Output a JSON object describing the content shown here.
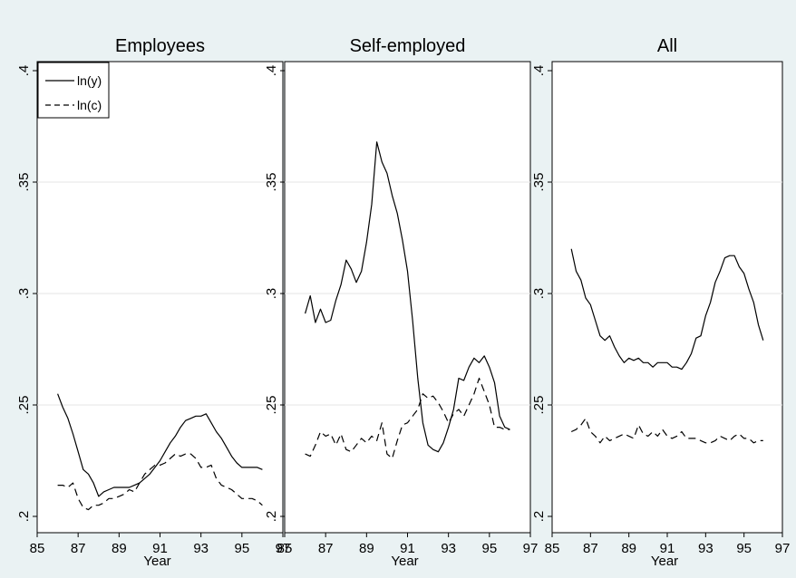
{
  "chart_data": [
    {
      "type": "line",
      "title": "Employees",
      "xlabel": "Year",
      "ylabel": "",
      "xlim": [
        85,
        97
      ],
      "ylim": [
        0.2,
        0.4
      ],
      "xticks": [
        "85",
        "87",
        "89",
        "91",
        "93",
        "95",
        "97"
      ],
      "yticks": [
        ".2",
        ".25",
        ".3",
        ".35",
        ".4"
      ],
      "grid": true,
      "legend": "top-left",
      "series": [
        {
          "name": "ln(y)",
          "style": "solid",
          "x": [
            86.0,
            86.25,
            86.5,
            86.75,
            87.0,
            87.25,
            87.5,
            87.75,
            88.0,
            88.25,
            88.5,
            88.75,
            89.0,
            89.25,
            89.5,
            89.75,
            90.0,
            90.25,
            90.5,
            90.75,
            91.0,
            91.25,
            91.5,
            91.75,
            92.0,
            92.25,
            92.5,
            92.75,
            93.0,
            93.25,
            93.5,
            93.75,
            94.0,
            94.25,
            94.5,
            94.75,
            95.0,
            95.25,
            95.5,
            95.75,
            96.0
          ],
          "y": [
            0.255,
            0.249,
            0.244,
            0.237,
            0.229,
            0.221,
            0.219,
            0.215,
            0.209,
            0.211,
            0.212,
            0.213,
            0.213,
            0.213,
            0.213,
            0.214,
            0.215,
            0.217,
            0.219,
            0.222,
            0.225,
            0.229,
            0.233,
            0.236,
            0.24,
            0.243,
            0.244,
            0.245,
            0.245,
            0.246,
            0.242,
            0.238,
            0.235,
            0.231,
            0.227,
            0.224,
            0.222,
            0.222,
            0.222,
            0.222,
            0.221
          ]
        },
        {
          "name": "ln(c)",
          "style": "dashed",
          "x": [
            86.0,
            86.25,
            86.5,
            86.75,
            87.0,
            87.25,
            87.5,
            87.75,
            88.0,
            88.25,
            88.5,
            88.75,
            89.0,
            89.25,
            89.5,
            89.75,
            90.0,
            90.25,
            90.5,
            90.75,
            91.0,
            91.25,
            91.5,
            91.75,
            92.0,
            92.25,
            92.5,
            92.75,
            93.0,
            93.25,
            93.5,
            93.75,
            94.0,
            94.25,
            94.5,
            94.75,
            95.0,
            95.25,
            95.5,
            95.75,
            96.0
          ],
          "y": [
            0.214,
            0.214,
            0.213,
            0.215,
            0.208,
            0.204,
            0.203,
            0.205,
            0.205,
            0.206,
            0.208,
            0.208,
            0.209,
            0.21,
            0.212,
            0.211,
            0.215,
            0.219,
            0.221,
            0.223,
            0.223,
            0.224,
            0.226,
            0.228,
            0.227,
            0.228,
            0.228,
            0.226,
            0.222,
            0.222,
            0.223,
            0.217,
            0.214,
            0.213,
            0.212,
            0.21,
            0.208,
            0.208,
            0.208,
            0.207,
            0.205
          ]
        }
      ]
    },
    {
      "type": "line",
      "title": "Self-employed",
      "xlabel": "Year",
      "ylabel": "",
      "xlim": [
        85,
        97
      ],
      "ylim": [
        0.2,
        0.4
      ],
      "xticks": [
        "85",
        "87",
        "89",
        "91",
        "93",
        "95",
        "97"
      ],
      "yticks": [
        ".2",
        ".25",
        ".3",
        ".35",
        ".4"
      ],
      "grid": true,
      "series": [
        {
          "name": "ln(y)",
          "style": "solid",
          "x": [
            86.0,
            86.25,
            86.5,
            86.75,
            87.0,
            87.25,
            87.5,
            87.75,
            88.0,
            88.25,
            88.5,
            88.75,
            89.0,
            89.25,
            89.5,
            89.75,
            90.0,
            90.25,
            90.5,
            90.75,
            91.0,
            91.25,
            91.5,
            91.75,
            92.0,
            92.25,
            92.5,
            92.75,
            93.0,
            93.25,
            93.5,
            93.75,
            94.0,
            94.25,
            94.5,
            94.75,
            95.0,
            95.25,
            95.5,
            95.75,
            96.0
          ],
          "y": [
            0.291,
            0.299,
            0.287,
            0.293,
            0.287,
            0.288,
            0.297,
            0.304,
            0.315,
            0.311,
            0.305,
            0.31,
            0.323,
            0.34,
            0.368,
            0.359,
            0.354,
            0.344,
            0.336,
            0.324,
            0.31,
            0.288,
            0.262,
            0.242,
            0.232,
            0.23,
            0.229,
            0.233,
            0.24,
            0.248,
            0.262,
            0.261,
            0.267,
            0.271,
            0.269,
            0.272,
            0.267,
            0.26,
            0.245,
            0.24,
            0.239
          ]
        },
        {
          "name": "ln(c)",
          "style": "dashed",
          "x": [
            86.0,
            86.25,
            86.5,
            86.75,
            87.0,
            87.25,
            87.5,
            87.75,
            88.0,
            88.25,
            88.5,
            88.75,
            89.0,
            89.25,
            89.5,
            89.75,
            90.0,
            90.25,
            90.5,
            90.75,
            91.0,
            91.25,
            91.5,
            91.75,
            92.0,
            92.25,
            92.5,
            92.75,
            93.0,
            93.25,
            93.5,
            93.75,
            94.0,
            94.25,
            94.5,
            94.75,
            95.0,
            95.25,
            95.5,
            95.75,
            96.0
          ],
          "y": [
            0.228,
            0.227,
            0.232,
            0.238,
            0.236,
            0.237,
            0.232,
            0.237,
            0.23,
            0.229,
            0.232,
            0.235,
            0.233,
            0.236,
            0.234,
            0.242,
            0.228,
            0.226,
            0.234,
            0.241,
            0.242,
            0.245,
            0.248,
            0.255,
            0.253,
            0.254,
            0.251,
            0.247,
            0.242,
            0.246,
            0.248,
            0.245,
            0.25,
            0.255,
            0.262,
            0.256,
            0.25,
            0.24,
            0.24,
            0.239,
            0.239
          ]
        }
      ]
    },
    {
      "type": "line",
      "title": "All",
      "xlabel": "Year",
      "ylabel": "",
      "xlim": [
        85,
        97
      ],
      "ylim": [
        0.2,
        0.4
      ],
      "xticks": [
        "85",
        "87",
        "89",
        "91",
        "93",
        "95",
        "97"
      ],
      "yticks": [
        ".2",
        ".25",
        ".3",
        ".35",
        ".4"
      ],
      "grid": true,
      "series": [
        {
          "name": "ln(y)",
          "style": "solid",
          "x": [
            86.0,
            86.25,
            86.5,
            86.75,
            87.0,
            87.25,
            87.5,
            87.75,
            88.0,
            88.25,
            88.5,
            88.75,
            89.0,
            89.25,
            89.5,
            89.75,
            90.0,
            90.25,
            90.5,
            90.75,
            91.0,
            91.25,
            91.5,
            91.75,
            92.0,
            92.25,
            92.5,
            92.75,
            93.0,
            93.25,
            93.5,
            93.75,
            94.0,
            94.25,
            94.5,
            94.75,
            95.0,
            95.25,
            95.5,
            95.75,
            96.0
          ],
          "y": [
            0.32,
            0.31,
            0.306,
            0.298,
            0.295,
            0.288,
            0.281,
            0.279,
            0.281,
            0.276,
            0.272,
            0.269,
            0.271,
            0.27,
            0.271,
            0.269,
            0.269,
            0.267,
            0.269,
            0.269,
            0.269,
            0.267,
            0.267,
            0.266,
            0.269,
            0.273,
            0.28,
            0.281,
            0.29,
            0.296,
            0.305,
            0.31,
            0.316,
            0.317,
            0.317,
            0.312,
            0.309,
            0.302,
            0.296,
            0.286,
            0.279
          ]
        },
        {
          "name": "ln(c)",
          "style": "dashed",
          "x": [
            86.0,
            86.25,
            86.5,
            86.75,
            87.0,
            87.25,
            87.5,
            87.75,
            88.0,
            88.25,
            88.5,
            88.75,
            89.0,
            89.25,
            89.5,
            89.75,
            90.0,
            90.25,
            90.5,
            90.75,
            91.0,
            91.25,
            91.5,
            91.75,
            92.0,
            92.25,
            92.5,
            92.75,
            93.0,
            93.25,
            93.5,
            93.75,
            94.0,
            94.25,
            94.5,
            94.75,
            95.0,
            95.25,
            95.5,
            95.75,
            96.0
          ],
          "y": [
            0.238,
            0.239,
            0.241,
            0.244,
            0.238,
            0.236,
            0.233,
            0.236,
            0.234,
            0.235,
            0.236,
            0.237,
            0.236,
            0.235,
            0.241,
            0.237,
            0.236,
            0.238,
            0.236,
            0.239,
            0.236,
            0.235,
            0.236,
            0.238,
            0.235,
            0.235,
            0.235,
            0.234,
            0.233,
            0.233,
            0.234,
            0.236,
            0.235,
            0.234,
            0.236,
            0.237,
            0.235,
            0.235,
            0.233,
            0.234,
            0.234
          ]
        }
      ]
    }
  ]
}
